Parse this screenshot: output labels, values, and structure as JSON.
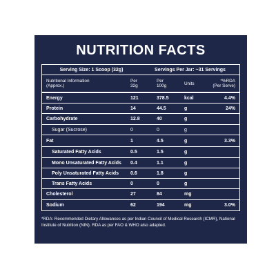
{
  "title": "NUTRITION FACTS",
  "serving_size": "Serving Size: 1 Scoop (32g)",
  "servings_per_jar": "Servings Per Jar: ~31 Servings",
  "headers": {
    "info": [
      "Nutritional Information",
      "(Approx.)"
    ],
    "per_serve": [
      "Per",
      "32g"
    ],
    "per_100g": [
      "Per",
      "100g"
    ],
    "units": "Units",
    "rda": [
      "*%RDA",
      "(Per Serve)"
    ]
  },
  "rows": [
    {
      "name": "Energy",
      "per_serve": "121",
      "per_100g": "378.5",
      "unit": "kcal",
      "rda": "4.4%",
      "bold": true,
      "sub": false
    },
    {
      "name": "Protein",
      "per_serve": "14",
      "per_100g": "44.5",
      "unit": "g",
      "rda": "24%",
      "bold": true,
      "sub": false
    },
    {
      "name": "Carbohydrate",
      "per_serve": "12.8",
      "per_100g": "40",
      "unit": "g",
      "rda": "",
      "bold": true,
      "sub": false
    },
    {
      "name": "Sugar (Sucrose)",
      "per_serve": "0",
      "per_100g": "0",
      "unit": "g",
      "rda": "",
      "bold": false,
      "sub": true
    },
    {
      "name": "Fat",
      "per_serve": "1",
      "per_100g": "4.5",
      "unit": "g",
      "rda": "3.3%",
      "bold": true,
      "sub": false
    },
    {
      "name": "Saturated Fatty Acids",
      "per_serve": "0.5",
      "per_100g": "1.5",
      "unit": "g",
      "rda": "",
      "bold": true,
      "sub": true
    },
    {
      "name": "Mono Unsaturated Fatty Acids",
      "per_serve": "0.4",
      "per_100g": "1.1",
      "unit": "g",
      "rda": "",
      "bold": true,
      "sub": true
    },
    {
      "name": "Poly Unsaturated Fatty Acids",
      "per_serve": "0.6",
      "per_100g": "1.8",
      "unit": "g",
      "rda": "",
      "bold": true,
      "sub": true
    },
    {
      "name": "Trans Fatty Acids",
      "per_serve": "0",
      "per_100g": "0",
      "unit": "g",
      "rda": "",
      "bold": true,
      "sub": true
    },
    {
      "name": "Cholesterol",
      "per_serve": "27",
      "per_100g": "84",
      "unit": "mg",
      "rda": "",
      "bold": true,
      "sub": false
    },
    {
      "name": "Sodium",
      "per_serve": "62",
      "per_100g": "194",
      "unit": "mg",
      "rda": "3.0%",
      "bold": true,
      "sub": false
    }
  ],
  "footnote": "*RDA: Recommended Dietary Allowances as per Indian Council of Medical Research (ICMR), National Institute of Nutrition (NIN). RDA as per FAO & WHO also adapted.",
  "colors": {
    "panel": "#1e2748",
    "text": "#ffffff"
  }
}
